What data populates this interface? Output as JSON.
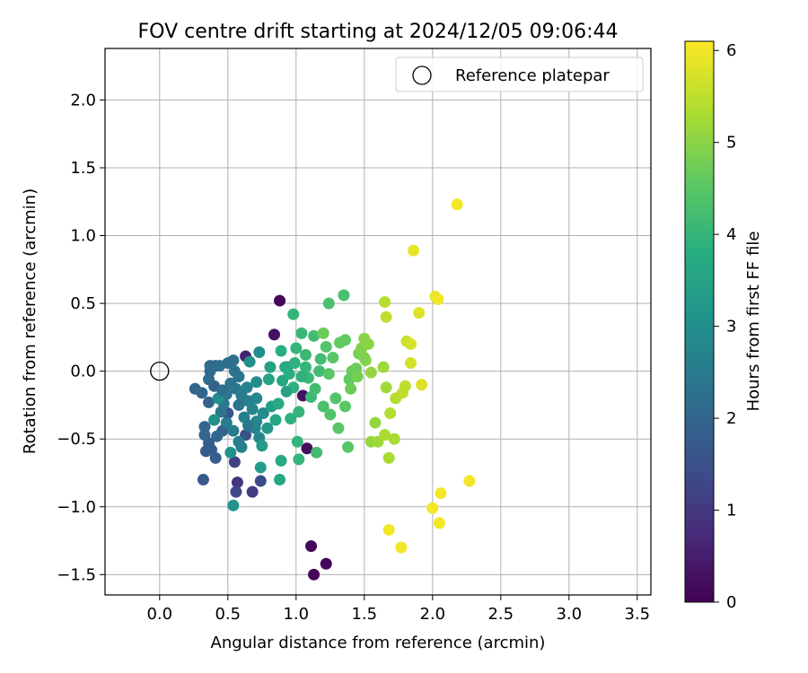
{
  "chart_data": {
    "type": "scatter",
    "title": "FOV centre drift starting at 2024/12/05 09:06:44",
    "xlabel": "Angular distance from reference (arcmin)",
    "ylabel": "Rotation from reference (arcmin)",
    "xlim": [
      -0.4,
      3.6
    ],
    "ylim": [
      -1.65,
      2.38
    ],
    "xticks": [
      0.0,
      0.5,
      1.0,
      1.5,
      2.0,
      2.5,
      3.0,
      3.5
    ],
    "xtick_labels": [
      "0.0",
      "0.5",
      "1.0",
      "1.5",
      "2.0",
      "2.5",
      "3.0",
      "3.5"
    ],
    "yticks": [
      -1.5,
      -1.0,
      -0.5,
      0.0,
      0.5,
      1.0,
      1.5,
      2.0
    ],
    "ytick_labels": [
      "−1.5",
      "−1.0",
      "−0.5",
      "0.0",
      "0.5",
      "1.0",
      "1.5",
      "2.0"
    ],
    "grid": true,
    "legend": {
      "position": "top-right",
      "entries": [
        "Reference platepar"
      ]
    },
    "colorbar": {
      "label": "Hours from first FF file",
      "range": [
        0,
        6.1
      ],
      "ticks": [
        0,
        1,
        2,
        3,
        4,
        5,
        6
      ],
      "tick_labels": [
        "0",
        "1",
        "2",
        "3",
        "4",
        "5",
        "6"
      ],
      "colormap": "viridis"
    },
    "reference_point": {
      "x": 0.0,
      "y": 0.0,
      "label": "Reference platepar"
    },
    "points": [
      {
        "x": 0.88,
        "y": 0.52,
        "h": 0.1
      },
      {
        "x": 1.11,
        "y": -1.29,
        "h": 0.1
      },
      {
        "x": 1.13,
        "y": -1.5,
        "h": 0.1
      },
      {
        "x": 1.22,
        "y": -1.42,
        "h": 0.1
      },
      {
        "x": 0.84,
        "y": 0.27,
        "h": 0.3
      },
      {
        "x": 1.08,
        "y": -0.57,
        "h": 0.2
      },
      {
        "x": 1.05,
        "y": -0.18,
        "h": 0.3
      },
      {
        "x": 0.93,
        "y": 0.03,
        "h": 0.4
      },
      {
        "x": 0.63,
        "y": 0.11,
        "h": 0.6
      },
      {
        "x": 0.57,
        "y": -0.82,
        "h": 0.9
      },
      {
        "x": 0.68,
        "y": -0.89,
        "h": 1.1
      },
      {
        "x": 0.55,
        "y": -0.67,
        "h": 1.2
      },
      {
        "x": 0.56,
        "y": -0.89,
        "h": 1.3
      },
      {
        "x": 0.74,
        "y": -0.81,
        "h": 1.4
      },
      {
        "x": 0.63,
        "y": -0.47,
        "h": 1.5
      },
      {
        "x": 0.5,
        "y": -0.31,
        "h": 1.6
      },
      {
        "x": 0.34,
        "y": -0.59,
        "h": 1.7
      },
      {
        "x": 0.32,
        "y": -0.8,
        "h": 1.7
      },
      {
        "x": 0.36,
        "y": -0.53,
        "h": 1.8
      },
      {
        "x": 0.38,
        "y": -0.58,
        "h": 1.8
      },
      {
        "x": 0.41,
        "y": -0.64,
        "h": 1.8
      },
      {
        "x": 0.46,
        "y": -0.44,
        "h": 1.9
      },
      {
        "x": 0.36,
        "y": -0.23,
        "h": 1.9
      },
      {
        "x": 0.4,
        "y": -0.11,
        "h": 1.9
      },
      {
        "x": 0.33,
        "y": -0.47,
        "h": 2.0
      },
      {
        "x": 0.33,
        "y": -0.41,
        "h": 2.0
      },
      {
        "x": 0.26,
        "y": -0.13,
        "h": 2.0
      },
      {
        "x": 0.31,
        "y": -0.16,
        "h": 2.0
      },
      {
        "x": 0.37,
        "y": 0.0,
        "h": 2.1
      },
      {
        "x": 0.37,
        "y": 0.04,
        "h": 2.1
      },
      {
        "x": 0.41,
        "y": 0.04,
        "h": 2.1
      },
      {
        "x": 0.44,
        "y": 0.04,
        "h": 2.2
      },
      {
        "x": 0.5,
        "y": 0.06,
        "h": 2.2
      },
      {
        "x": 0.54,
        "y": 0.08,
        "h": 2.2
      },
      {
        "x": 0.55,
        "y": 0.0,
        "h": 2.3
      },
      {
        "x": 0.58,
        "y": -0.04,
        "h": 2.3
      },
      {
        "x": 0.52,
        "y": -0.09,
        "h": 2.3
      },
      {
        "x": 0.56,
        "y": -0.13,
        "h": 2.4
      },
      {
        "x": 0.49,
        "y": -0.17,
        "h": 2.4
      },
      {
        "x": 0.47,
        "y": -0.24,
        "h": 2.4
      },
      {
        "x": 0.45,
        "y": -0.3,
        "h": 2.4
      },
      {
        "x": 0.49,
        "y": -0.38,
        "h": 2.5
      },
      {
        "x": 0.54,
        "y": -0.44,
        "h": 2.5
      },
      {
        "x": 0.58,
        "y": -0.52,
        "h": 2.5
      },
      {
        "x": 0.6,
        "y": -0.56,
        "h": 2.6
      },
      {
        "x": 0.62,
        "y": -0.34,
        "h": 2.6
      },
      {
        "x": 0.65,
        "y": -0.22,
        "h": 2.6
      },
      {
        "x": 0.64,
        "y": -0.12,
        "h": 2.7
      },
      {
        "x": 0.68,
        "y": -0.28,
        "h": 2.7
      },
      {
        "x": 0.7,
        "y": -0.42,
        "h": 2.7
      },
      {
        "x": 0.73,
        "y": -0.49,
        "h": 2.8
      },
      {
        "x": 0.71,
        "y": -0.37,
        "h": 2.8
      },
      {
        "x": 0.76,
        "y": -0.31,
        "h": 2.9
      },
      {
        "x": 0.71,
        "y": -0.08,
        "h": 2.9
      },
      {
        "x": 0.73,
        "y": 0.14,
        "h": 3.0
      },
      {
        "x": 0.66,
        "y": 0.07,
        "h": 3.0
      },
      {
        "x": 0.54,
        "y": -0.99,
        "h": 3.1
      },
      {
        "x": 0.52,
        "y": -0.6,
        "h": 3.1
      },
      {
        "x": 0.4,
        "y": -0.36,
        "h": 3.0
      },
      {
        "x": 0.43,
        "y": -0.2,
        "h": 3.0
      },
      {
        "x": 0.74,
        "y": -0.71,
        "h": 3.3
      },
      {
        "x": 0.75,
        "y": -0.55,
        "h": 3.3
      },
      {
        "x": 0.79,
        "y": -0.42,
        "h": 3.2
      },
      {
        "x": 0.82,
        "y": -0.26,
        "h": 3.4
      },
      {
        "x": 0.8,
        "y": -0.06,
        "h": 3.5
      },
      {
        "x": 0.81,
        "y": 0.03,
        "h": 3.5
      },
      {
        "x": 0.88,
        "y": -0.8,
        "h": 3.6
      },
      {
        "x": 0.89,
        "y": -0.66,
        "h": 3.7
      },
      {
        "x": 0.85,
        "y": -0.36,
        "h": 3.6
      },
      {
        "x": 0.87,
        "y": -0.24,
        "h": 3.7
      },
      {
        "x": 0.9,
        "y": -0.07,
        "h": 3.6
      },
      {
        "x": 0.92,
        "y": 0.03,
        "h": 3.7
      },
      {
        "x": 0.89,
        "y": 0.15,
        "h": 3.8
      },
      {
        "x": 0.95,
        "y": -0.02,
        "h": 3.8
      },
      {
        "x": 0.98,
        "y": -0.12,
        "h": 3.9
      },
      {
        "x": 0.96,
        "y": -0.35,
        "h": 3.9
      },
      {
        "x": 1.01,
        "y": -0.52,
        "h": 4.0
      },
      {
        "x": 1.02,
        "y": -0.65,
        "h": 4.0
      },
      {
        "x": 0.99,
        "y": 0.06,
        "h": 3.9
      },
      {
        "x": 1.0,
        "y": 0.17,
        "h": 4.0
      },
      {
        "x": 0.98,
        "y": 0.42,
        "h": 4.0
      },
      {
        "x": 1.04,
        "y": 0.28,
        "h": 4.1
      },
      {
        "x": 1.07,
        "y": 0.12,
        "h": 4.1
      },
      {
        "x": 1.09,
        "y": -0.05,
        "h": 4.1
      },
      {
        "x": 1.11,
        "y": -0.19,
        "h": 4.1
      },
      {
        "x": 1.02,
        "y": -0.3,
        "h": 4.0
      },
      {
        "x": 1.15,
        "y": -0.6,
        "h": 4.2
      },
      {
        "x": 1.14,
        "y": -0.13,
        "h": 4.2
      },
      {
        "x": 1.17,
        "y": 0.0,
        "h": 4.2
      },
      {
        "x": 1.18,
        "y": 0.09,
        "h": 4.2
      },
      {
        "x": 1.13,
        "y": 0.26,
        "h": 4.2
      },
      {
        "x": 1.24,
        "y": 0.5,
        "h": 4.3
      },
      {
        "x": 1.35,
        "y": 0.56,
        "h": 4.3
      },
      {
        "x": 1.2,
        "y": -0.26,
        "h": 4.3
      },
      {
        "x": 1.25,
        "y": -0.32,
        "h": 4.4
      },
      {
        "x": 1.29,
        "y": -0.2,
        "h": 4.4
      },
      {
        "x": 1.31,
        "y": -0.42,
        "h": 4.5
      },
      {
        "x": 1.36,
        "y": -0.26,
        "h": 4.5
      },
      {
        "x": 1.38,
        "y": -0.56,
        "h": 4.5
      },
      {
        "x": 1.22,
        "y": 0.18,
        "h": 4.4
      },
      {
        "x": 1.27,
        "y": 0.1,
        "h": 4.5
      },
      {
        "x": 1.32,
        "y": 0.21,
        "h": 4.6
      },
      {
        "x": 1.36,
        "y": 0.23,
        "h": 4.6
      },
      {
        "x": 1.41,
        "y": 0.0,
        "h": 4.7
      },
      {
        "x": 1.44,
        "y": 0.02,
        "h": 4.7
      },
      {
        "x": 1.39,
        "y": -0.06,
        "h": 4.6
      },
      {
        "x": 1.4,
        "y": -0.13,
        "h": 4.7
      },
      {
        "x": 1.24,
        "y": -0.02,
        "h": 4.5
      },
      {
        "x": 1.2,
        "y": 0.28,
        "h": 4.7
      },
      {
        "x": 1.46,
        "y": 0.13,
        "h": 4.8
      },
      {
        "x": 1.48,
        "y": 0.17,
        "h": 4.9
      },
      {
        "x": 1.5,
        "y": 0.24,
        "h": 5.0
      },
      {
        "x": 1.53,
        "y": 0.2,
        "h": 5.0
      },
      {
        "x": 1.51,
        "y": 0.08,
        "h": 5.0
      },
      {
        "x": 1.55,
        "y": -0.01,
        "h": 5.1
      },
      {
        "x": 1.58,
        "y": -0.38,
        "h": 5.1
      },
      {
        "x": 1.55,
        "y": -0.52,
        "h": 5.1
      },
      {
        "x": 1.6,
        "y": -0.52,
        "h": 5.2
      },
      {
        "x": 1.64,
        "y": 0.03,
        "h": 5.2
      },
      {
        "x": 1.66,
        "y": -0.12,
        "h": 5.2
      },
      {
        "x": 1.65,
        "y": -0.47,
        "h": 5.3
      },
      {
        "x": 1.68,
        "y": -0.64,
        "h": 5.3
      },
      {
        "x": 1.72,
        "y": -0.5,
        "h": 5.3
      },
      {
        "x": 1.69,
        "y": -0.31,
        "h": 5.4
      },
      {
        "x": 1.73,
        "y": -0.2,
        "h": 5.4
      },
      {
        "x": 1.78,
        "y": -0.16,
        "h": 5.5
      },
      {
        "x": 1.8,
        "y": -0.11,
        "h": 5.5
      },
      {
        "x": 1.65,
        "y": 0.51,
        "h": 5.4
      },
      {
        "x": 1.66,
        "y": 0.4,
        "h": 5.5
      },
      {
        "x": 1.81,
        "y": 0.22,
        "h": 5.6
      },
      {
        "x": 1.84,
        "y": 0.06,
        "h": 5.7
      },
      {
        "x": 1.84,
        "y": 0.2,
        "h": 5.7
      },
      {
        "x": 1.9,
        "y": 0.43,
        "h": 5.8
      },
      {
        "x": 1.92,
        "y": -0.1,
        "h": 5.8
      },
      {
        "x": 1.86,
        "y": 0.89,
        "h": 5.9
      },
      {
        "x": 2.02,
        "y": 0.55,
        "h": 5.9
      },
      {
        "x": 2.04,
        "y": 0.53,
        "h": 6.0
      },
      {
        "x": 2.18,
        "y": 1.23,
        "h": 6.0
      },
      {
        "x": 1.68,
        "y": -1.17,
        "h": 6.0
      },
      {
        "x": 1.77,
        "y": -1.3,
        "h": 6.0
      },
      {
        "x": 2.0,
        "y": -1.01,
        "h": 6.0
      },
      {
        "x": 2.06,
        "y": -0.9,
        "h": 6.0
      },
      {
        "x": 2.05,
        "y": -1.12,
        "h": 6.0
      },
      {
        "x": 2.27,
        "y": -0.81,
        "h": 6.0
      },
      {
        "x": 1.5,
        "y": 0.1,
        "h": 4.9
      },
      {
        "x": 1.45,
        "y": -0.04,
        "h": 4.8
      },
      {
        "x": 1.04,
        "y": -0.04,
        "h": 3.9
      },
      {
        "x": 1.07,
        "y": 0.03,
        "h": 4.0
      },
      {
        "x": 0.93,
        "y": -0.15,
        "h": 3.5
      },
      {
        "x": 0.6,
        "y": -0.18,
        "h": 2.5
      },
      {
        "x": 0.65,
        "y": -0.4,
        "h": 2.4
      },
      {
        "x": 0.58,
        "y": -0.25,
        "h": 2.3
      },
      {
        "x": 0.46,
        "y": -0.14,
        "h": 2.2
      },
      {
        "x": 0.42,
        "y": -0.48,
        "h": 2.0
      },
      {
        "x": 0.36,
        "y": -0.06,
        "h": 2.1
      },
      {
        "x": 0.71,
        "y": -0.2,
        "h": 2.8
      }
    ]
  }
}
